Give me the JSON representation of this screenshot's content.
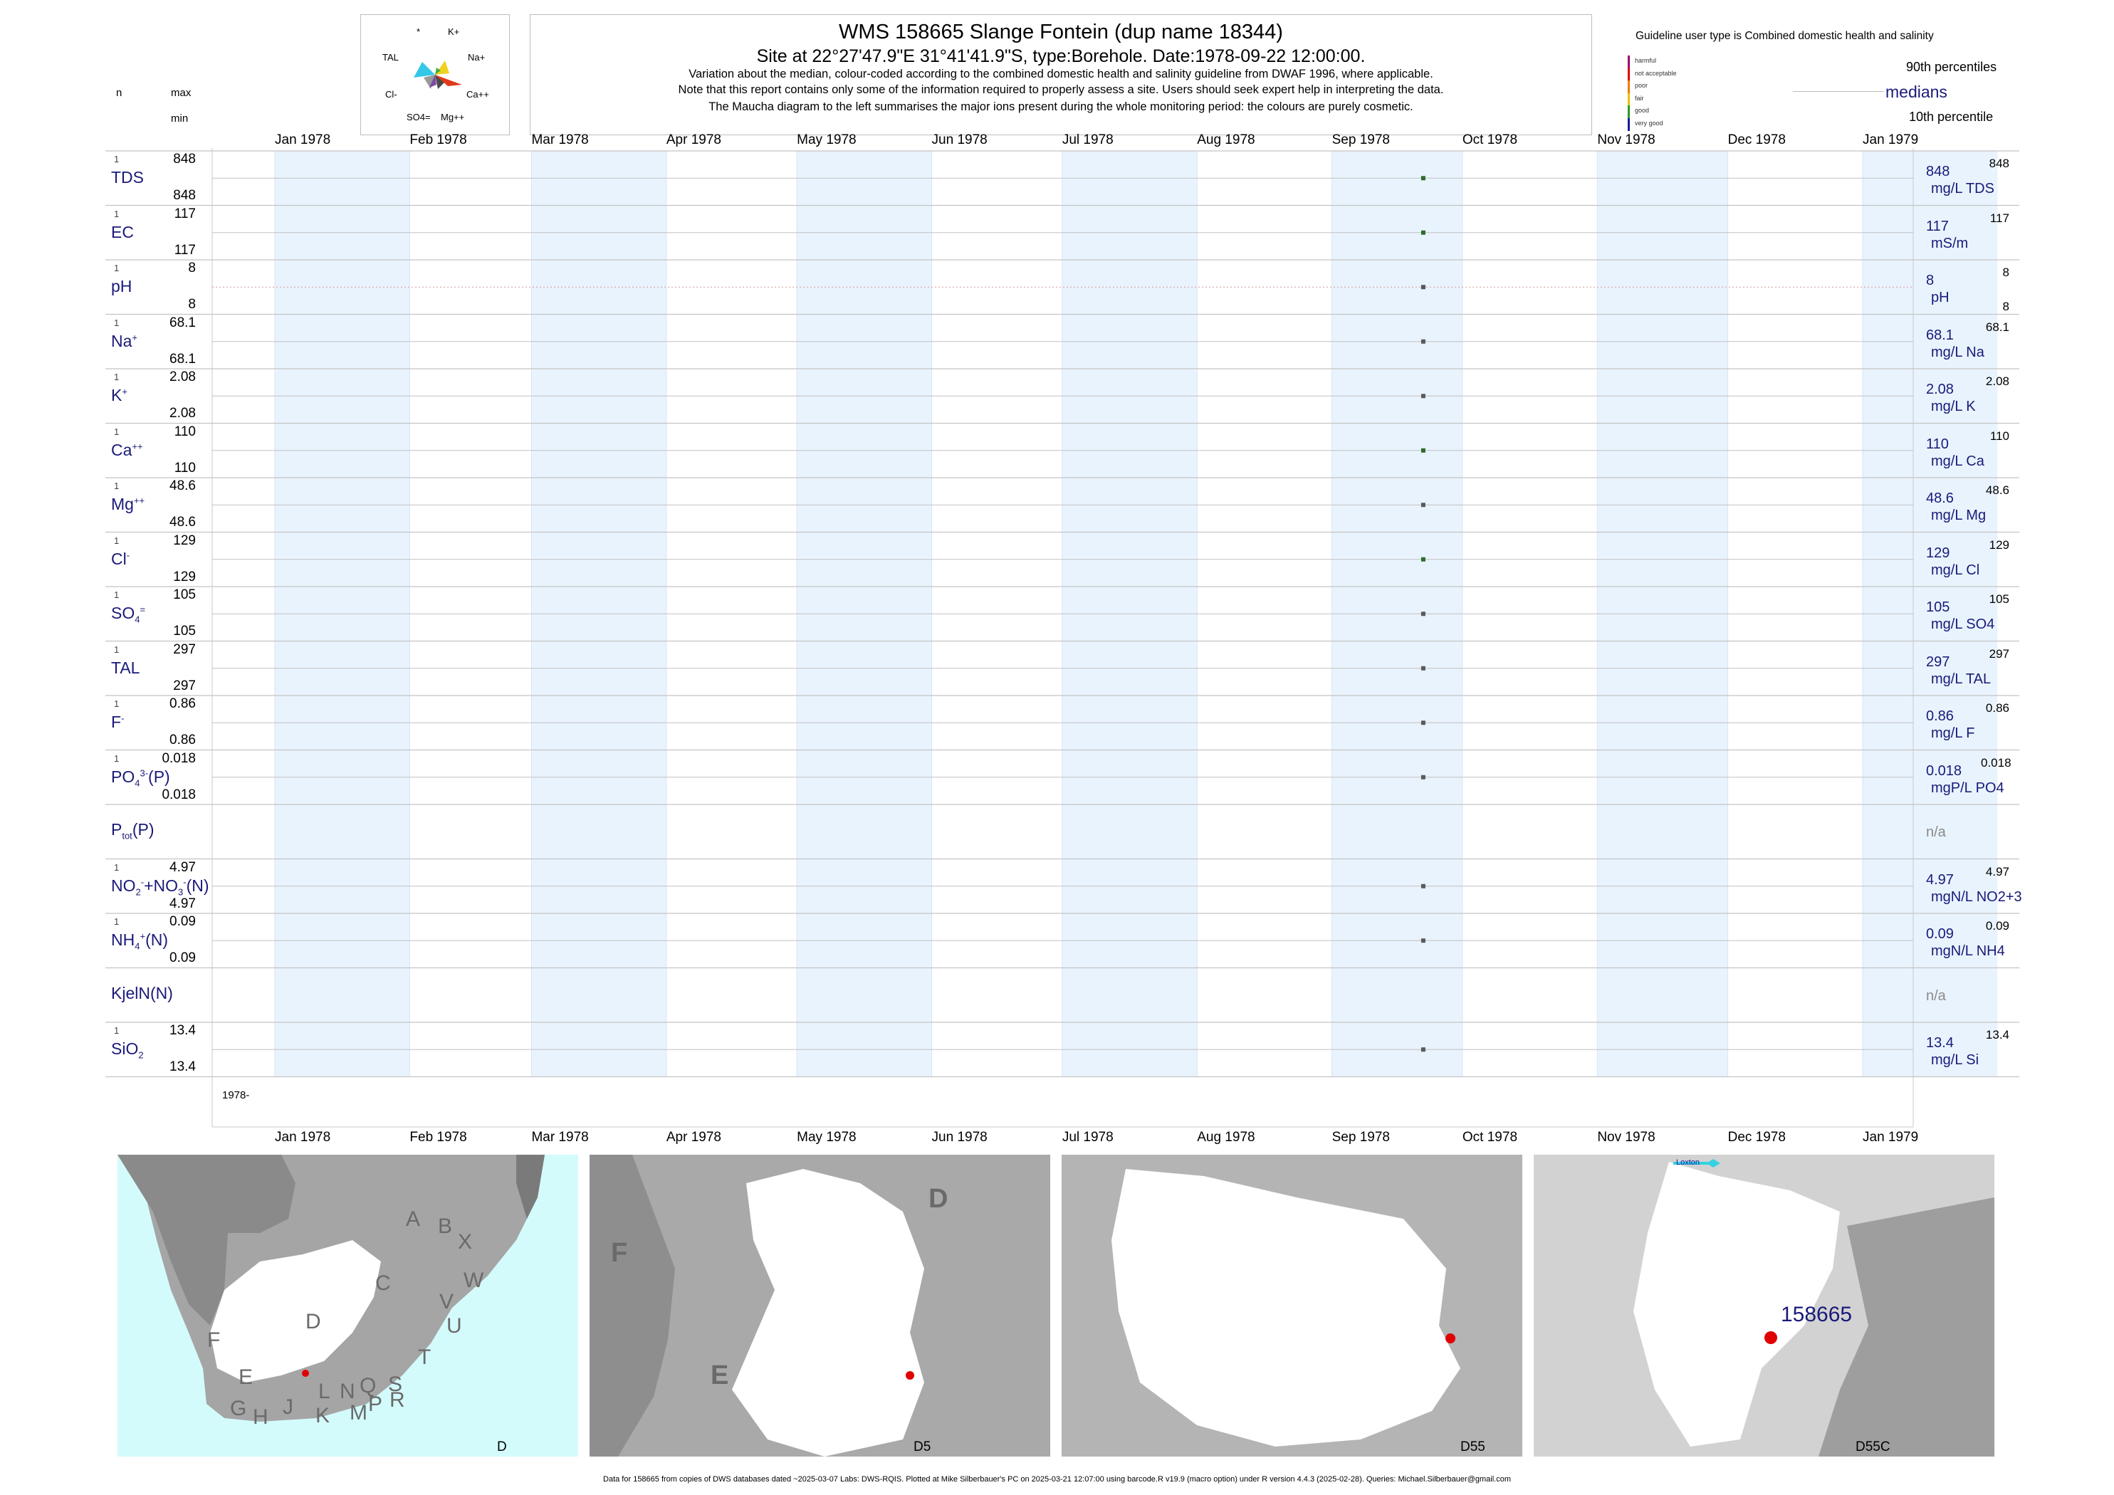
{
  "header": {
    "title": "WMS 158665  Slange Fontein (dup name 18344)",
    "subtitle": "Site at 22°27'47.9\"E 31°41'41.9\"S, type:Borehole. Date:1978-09-22 12:00:00.",
    "note1": "Variation about the median,  colour-coded according to the combined domestic health and salinity guideline from DWAF 1996, where applicable.",
    "note2": "Note that this report contains only some of the information required to properly assess a site. Users should seek expert help in interpreting the data.",
    "note3": "The Maucha diagram to the left summarises the major ions present during the whole monitoring period: the colours are purely cosmetic."
  },
  "left_header": {
    "n": "n",
    "max": "max",
    "min": "min"
  },
  "maucha": {
    "star": "*",
    "k": "K+",
    "na": "Na+",
    "tal": "TAL",
    "cl": "Cl-",
    "ca": "Ca++",
    "so4": "SO4=",
    "mg": "Mg++"
  },
  "guideline": {
    "title": "Guideline user type is Combined domestic health and salinity",
    "levels": [
      "harmful",
      "not acceptable",
      "poor",
      "fair",
      "good",
      "very good"
    ],
    "level_colors": [
      "#a0006e",
      "#e00000",
      "#f07a00",
      "#e8c000",
      "#2a9a2a",
      "#1a1aa0"
    ],
    "p90": "90th percentiles",
    "medians": "medians",
    "p10": "10th percentile"
  },
  "axis": {
    "months": [
      "Jan 1978",
      "Feb 1978",
      "Mar 1978",
      "Apr 1978",
      "May 1978",
      "Jun 1978",
      "Jul 1978",
      "Aug 1978",
      "Sep 1978",
      "Oct 1978",
      "Nov 1978",
      "Dec 1978",
      "Jan 1979"
    ],
    "year_label": "1978-"
  },
  "chart_data": {
    "type": "scatter",
    "x_label": "",
    "x_range": [
      "1978-01-01",
      "1979-01-01"
    ],
    "sample_date": "1978-09-22",
    "series": [
      {
        "var": "TDS",
        "n": "1",
        "max": "848",
        "min": "848",
        "value": 848,
        "value_label": "848",
        "p90": "848",
        "unit": "mg/L TDS",
        "point_color": "#2e6b2e"
      },
      {
        "var": "EC",
        "n": "1",
        "max": "117",
        "min": "117",
        "value": 117,
        "value_label": "117",
        "p90": "117",
        "unit": "mS/m",
        "point_color": "#2e6b2e"
      },
      {
        "var": "pH",
        "n": "1",
        "max": "8",
        "min": "8",
        "value": 8,
        "value_label": "8",
        "p90": "8",
        "p10": "8",
        "unit": "pH",
        "point_color": "#555555"
      },
      {
        "var": "Na+",
        "n": "1",
        "max": "68.1",
        "min": "68.1",
        "value": 68.1,
        "value_label": "68.1",
        "p90": "68.1",
        "unit": "mg/L Na",
        "point_color": "#5a5a5a"
      },
      {
        "var": "K+",
        "n": "1",
        "max": "2.08",
        "min": "2.08",
        "value": 2.08,
        "value_label": "2.08",
        "p90": "2.08",
        "unit": "mg/L K",
        "point_color": "#5a5a5a"
      },
      {
        "var": "Ca++",
        "n": "1",
        "max": "110",
        "min": "110",
        "value": 110,
        "value_label": "110",
        "p90": "110",
        "unit": "mg/L Ca",
        "point_color": "#2e6b2e"
      },
      {
        "var": "Mg++",
        "n": "1",
        "max": "48.6",
        "min": "48.6",
        "value": 48.6,
        "value_label": "48.6",
        "p90": "48.6",
        "unit": "mg/L Mg",
        "point_color": "#5a5a5a"
      },
      {
        "var": "Cl-",
        "n": "1",
        "max": "129",
        "min": "129",
        "value": 129,
        "value_label": "129",
        "p90": "129",
        "unit": "mg/L Cl",
        "point_color": "#2e6b2e"
      },
      {
        "var": "SO4=",
        "n": "1",
        "max": "105",
        "min": "105",
        "value": 105,
        "value_label": "105",
        "p90": "105",
        "unit": "mg/L SO4",
        "point_color": "#5a5a5a"
      },
      {
        "var": "TAL",
        "n": "1",
        "max": "297",
        "min": "297",
        "value": 297,
        "value_label": "297",
        "p90": "297",
        "unit": "mg/L TAL",
        "point_color": "#5a5a5a"
      },
      {
        "var": "F-",
        "n": "1",
        "max": "0.86",
        "min": "0.86",
        "value": 0.86,
        "value_label": "0.86",
        "p90": "0.86",
        "unit": "mg/L F",
        "point_color": "#5a5a5a"
      },
      {
        "var": "PO4(P)",
        "n": "1",
        "max": "0.018",
        "min": "0.018",
        "value": 0.018,
        "value_label": "0.018",
        "p90": "0.018",
        "unit": "mgP/L PO4",
        "point_color": "#5a5a5a"
      },
      {
        "var": "Ptot(P)",
        "n": "",
        "max": "",
        "min": "",
        "value": null,
        "value_label": "n/a",
        "p90": "",
        "unit": "",
        "point_color": ""
      },
      {
        "var": "NO2+NO3(N)",
        "n": "1",
        "max": "4.97",
        "min": "4.97",
        "value": 4.97,
        "value_label": "4.97",
        "p90": "4.97",
        "unit": "mgN/L NO2+3",
        "point_color": "#5a5a5a"
      },
      {
        "var": "NH4(N)",
        "n": "1",
        "max": "0.09",
        "min": "0.09",
        "value": 0.09,
        "value_label": "0.09",
        "p90": "0.09",
        "unit": "mgN/L NH4",
        "point_color": "#5a5a5a"
      },
      {
        "var": "KjelN(N)",
        "n": "",
        "max": "",
        "min": "",
        "value": null,
        "value_label": "n/a",
        "p90": "",
        "unit": "",
        "point_color": ""
      },
      {
        "var": "SiO2",
        "n": "1",
        "max": "13.4",
        "min": "13.4",
        "value": 13.4,
        "value_label": "13.4",
        "p90": "13.4",
        "unit": "mg/L Si",
        "point_color": "#5a5a5a"
      }
    ]
  },
  "maps": {
    "map1": {
      "corner": "D",
      "regions": [
        "A",
        "B",
        "X",
        "C",
        "W",
        "D",
        "V",
        "U",
        "T",
        "F",
        "E",
        "G",
        "H",
        "J",
        "K",
        "L",
        "N",
        "M",
        "Q",
        "P",
        "S",
        "R"
      ]
    },
    "map2": {
      "corner": "D5",
      "regions": [
        "D",
        "F",
        "E"
      ]
    },
    "map3": {
      "corner": "D55"
    },
    "map4": {
      "corner": "D55C",
      "site_label": "158665",
      "town": "Loxton"
    }
  },
  "footer": "Data for 158665 from copies of DWS databases dated ~2025-03-07 Labs: DWS-RQIS. Plotted at Mike Silberbauer's PC on 2025-03-21 12:07:00 using barcode.R v19.9 (macro option) under R version 4.4.3 (2025-02-28). Queries: Michael.Silberbauer@gmail.com"
}
